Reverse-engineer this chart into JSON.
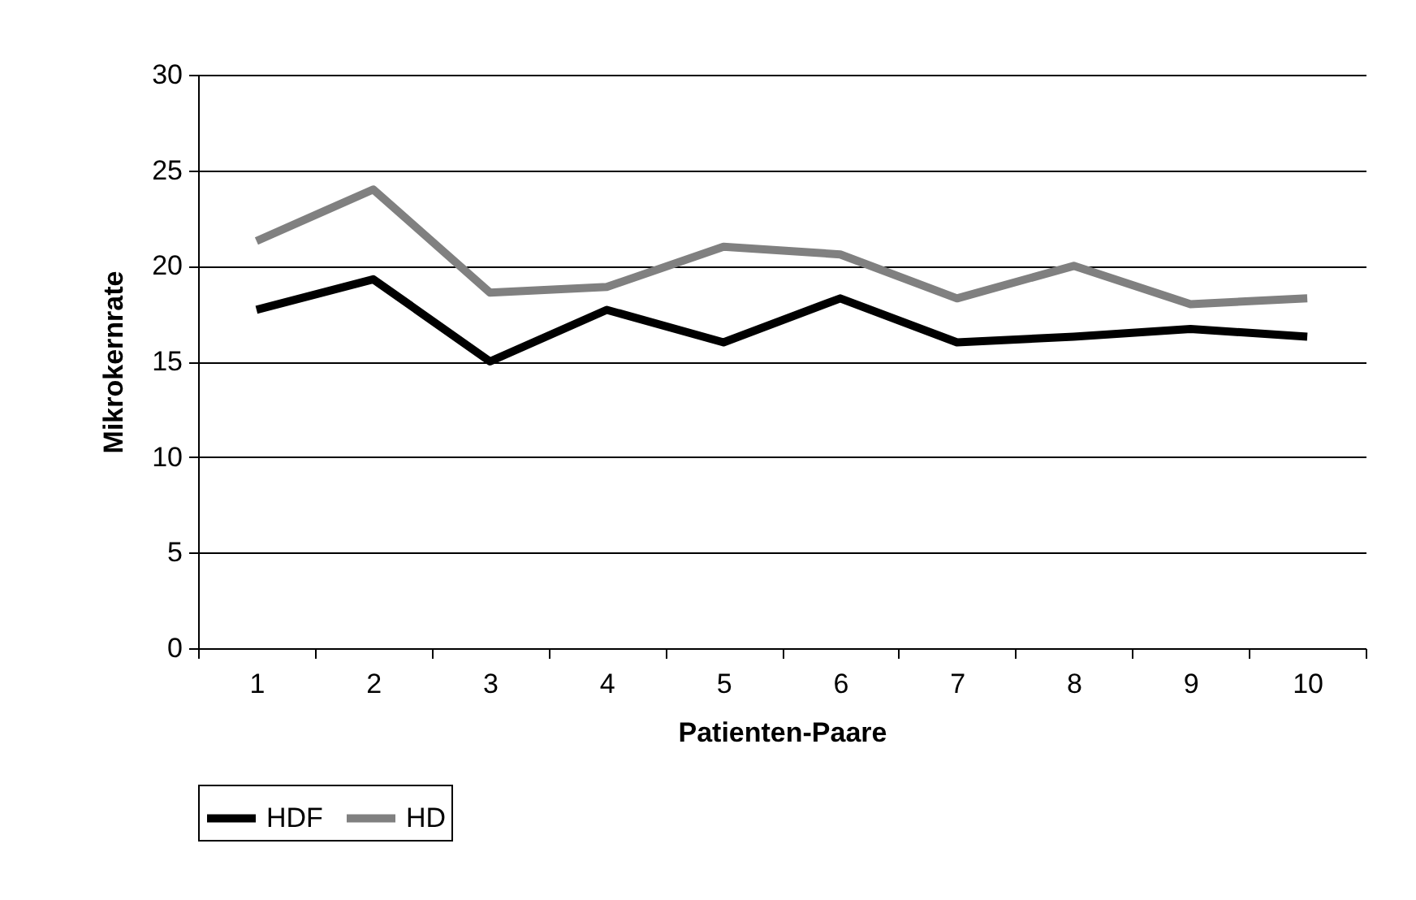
{
  "chart_data": {
    "type": "line",
    "xlabel": "Patienten-Paare",
    "ylabel": "Mikrokernrate",
    "categories": [
      "1",
      "2",
      "3",
      "4",
      "5",
      "6",
      "7",
      "8",
      "9",
      "10"
    ],
    "series": [
      {
        "name": "HDF",
        "color": "#000000",
        "values": [
          17.7,
          19.3,
          15.0,
          17.7,
          16.0,
          18.3,
          16.0,
          16.3,
          16.7,
          16.3
        ]
      },
      {
        "name": "HD",
        "color": "#808080",
        "values": [
          21.3,
          24.0,
          18.6,
          18.9,
          21.0,
          20.6,
          18.3,
          20.0,
          18.0,
          18.3
        ]
      }
    ],
    "ylim": [
      0,
      30
    ],
    "yticks": [
      0,
      5,
      10,
      15,
      20,
      25,
      30
    ],
    "grid": "y",
    "legend": "bottom"
  }
}
